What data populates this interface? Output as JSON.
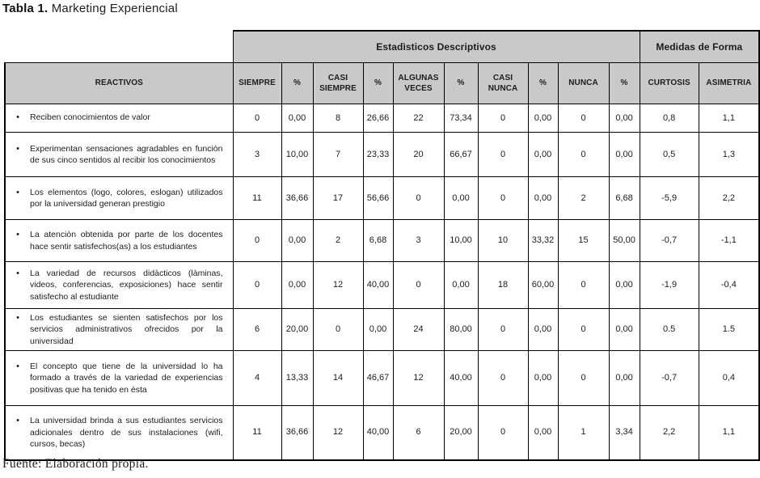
{
  "title": {
    "label_bold": "Tabla 1.",
    "label_rest": " Marketing Experiencial"
  },
  "table": {
    "group_headers": {
      "descriptives": "Estadìsticos Descriptivos",
      "shape": "Medidas de Forma"
    },
    "columns": [
      "REACTIVOS",
      "SIEMPRE",
      "%",
      "CASI SIEMPRE",
      "%",
      "ALGUNAS VECES",
      "%",
      "CASI NUNCA",
      "%",
      "NUNCA",
      "%",
      "CURTOSIS",
      "ASIMETRIA"
    ],
    "bullet": "•",
    "rows": [
      {
        "reactivo": "Reciben conocimientos de valor",
        "values": [
          "0",
          "0,00",
          "8",
          "26,66",
          "22",
          "73,34",
          "0",
          "0,00",
          "0",
          "0,00",
          "0,8",
          "1,1"
        ]
      },
      {
        "reactivo": "Experimentan sensaciones agradables en funciòn de sus cinco sentidos al recibir los conocimientos",
        "values": [
          "3",
          "10,00",
          "7",
          "23,33",
          "20",
          "66,67",
          "0",
          "0,00",
          "0",
          "0,00",
          "0,5",
          "1,3"
        ]
      },
      {
        "reactivo": "Los elementos (logo, colores, eslogan) utilizados por la universidad generan prestigio",
        "values": [
          "11",
          "36,66",
          "17",
          "56,66",
          "0",
          "0,00",
          "0",
          "0,00",
          "2",
          "6,68",
          "-5,9",
          "2,2"
        ]
      },
      {
        "reactivo": "La atenciòn obtenida por parte de los docentes hace sentir satisfechos(as) a los estudiantes",
        "values": [
          "0",
          "0,00",
          "2",
          "6,68",
          "3",
          "10,00",
          "10",
          "33,32",
          "15",
          "50,00",
          "-0,7",
          "-1,1"
        ]
      },
      {
        "reactivo": "La variedad de recursos didàcticos (làminas, videos, conferencias, exposiciones) hace sentir satisfecho al estudiante",
        "values": [
          "0",
          "0,00",
          "12",
          "40,00",
          "0",
          "0,00",
          "18",
          "60,00",
          "0",
          "0,00",
          "-1,9",
          "-0,4"
        ]
      },
      {
        "reactivo": "Los estudiantes se sienten satisfechos por los servicios administrativos ofrecidos por la universidad",
        "values": [
          "6",
          "20,00",
          "0",
          "0,00",
          "24",
          "80,00",
          "0",
          "0,00",
          "0",
          "0,00",
          "0.5",
          "1.5"
        ]
      },
      {
        "reactivo": "El concepto que tiene de la universidad lo ha formado a través de la variedad de experiencias positivas que ha tenido en ésta",
        "values": [
          "4",
          "13,33",
          "14",
          "46,67",
          "12",
          "40,00",
          "0",
          "0,00",
          "0",
          "0,00",
          "-0,7",
          "0,4"
        ]
      },
      {
        "reactivo": "La universidad brinda a sus estudiantes servicios adicionales dentro de sus instalaciones (wifi, cursos, becas)",
        "values": [
          "11",
          "36,66",
          "12",
          "40,00",
          "6",
          "20,00",
          "0",
          "0,00",
          "1",
          "3,34",
          "2,2",
          "1,1"
        ]
      }
    ]
  },
  "footer": {
    "label": "Fuente:",
    "text": " Elaboración propia."
  },
  "colors": {
    "header_bg": "#c9c9c9",
    "border": "#000000",
    "page_bg": "#ffffff"
  }
}
